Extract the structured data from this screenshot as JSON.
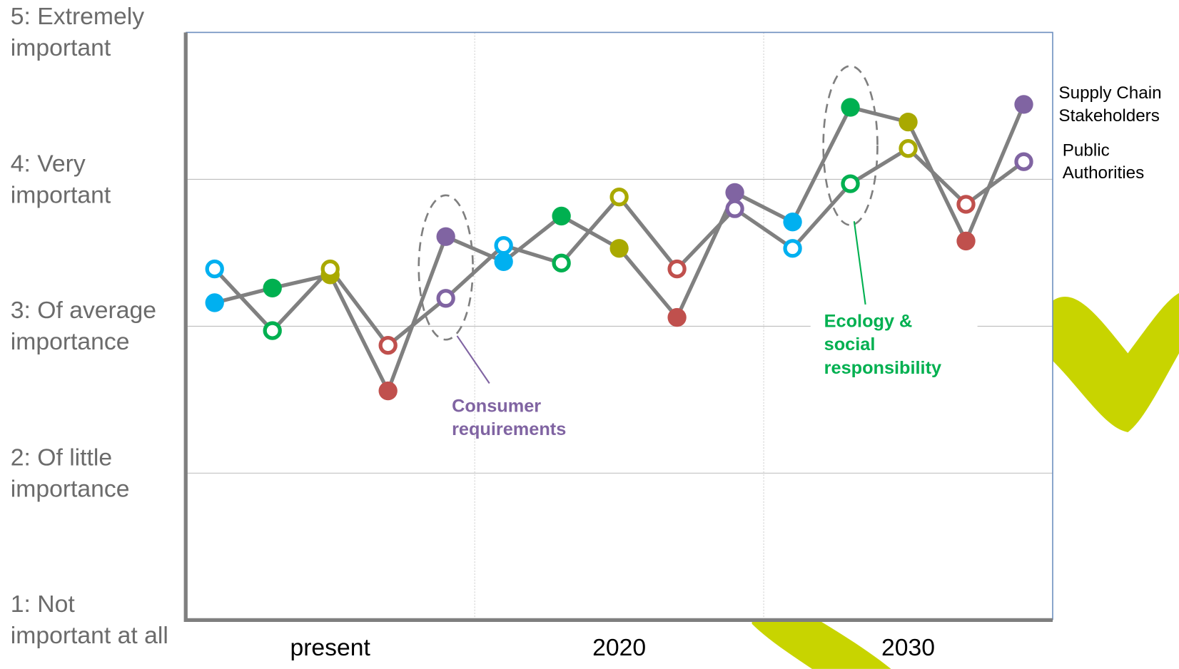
{
  "chart_data": {
    "type": "line",
    "categories": [
      null,
      null,
      "present",
      null,
      null,
      null,
      null,
      "2020",
      null,
      null,
      null,
      null,
      "2030",
      null,
      null
    ],
    "point_colors": [
      "#00b0f0",
      "#00b050",
      "#a9a900",
      "#c0504d",
      "#8064a2",
      "#00b0f0",
      "#00b050",
      "#a9a900",
      "#c0504d",
      "#8064a2",
      "#00b0f0",
      "#00b050",
      "#a9a900",
      "#c0504d",
      "#8064a2"
    ],
    "series": [
      {
        "name": "Supply Chain Stakeholders",
        "color": "#808080",
        "marker": "filled",
        "values": [
          3.16,
          3.26,
          3.35,
          2.56,
          3.61,
          3.44,
          3.75,
          3.53,
          3.06,
          3.91,
          3.71,
          4.49,
          4.39,
          3.58,
          4.51
        ]
      },
      {
        "name": "Public Authorities",
        "color": "#808080",
        "marker": "hollow",
        "values": [
          3.39,
          2.97,
          3.39,
          2.87,
          3.19,
          3.55,
          3.43,
          3.88,
          3.39,
          3.8,
          3.53,
          3.97,
          4.21,
          3.83,
          4.12
        ]
      }
    ],
    "ylim": [
      1,
      5
    ],
    "yticks": [
      {
        "value": 1,
        "label": "1: Not important at all"
      },
      {
        "value": 2,
        "label": "2: Of little importance"
      },
      {
        "value": 3,
        "label": "3: Of average importance"
      },
      {
        "value": 4,
        "label": "4: Very important"
      },
      {
        "value": 5,
        "label": "5: Extremely important"
      }
    ],
    "grid": true,
    "annotations": [
      {
        "text": "Consumer requirements",
        "color": "#8064a2",
        "index": 4
      },
      {
        "text": "Ecology & social responsibility",
        "color": "#00b050",
        "index": 11
      }
    ]
  }
}
